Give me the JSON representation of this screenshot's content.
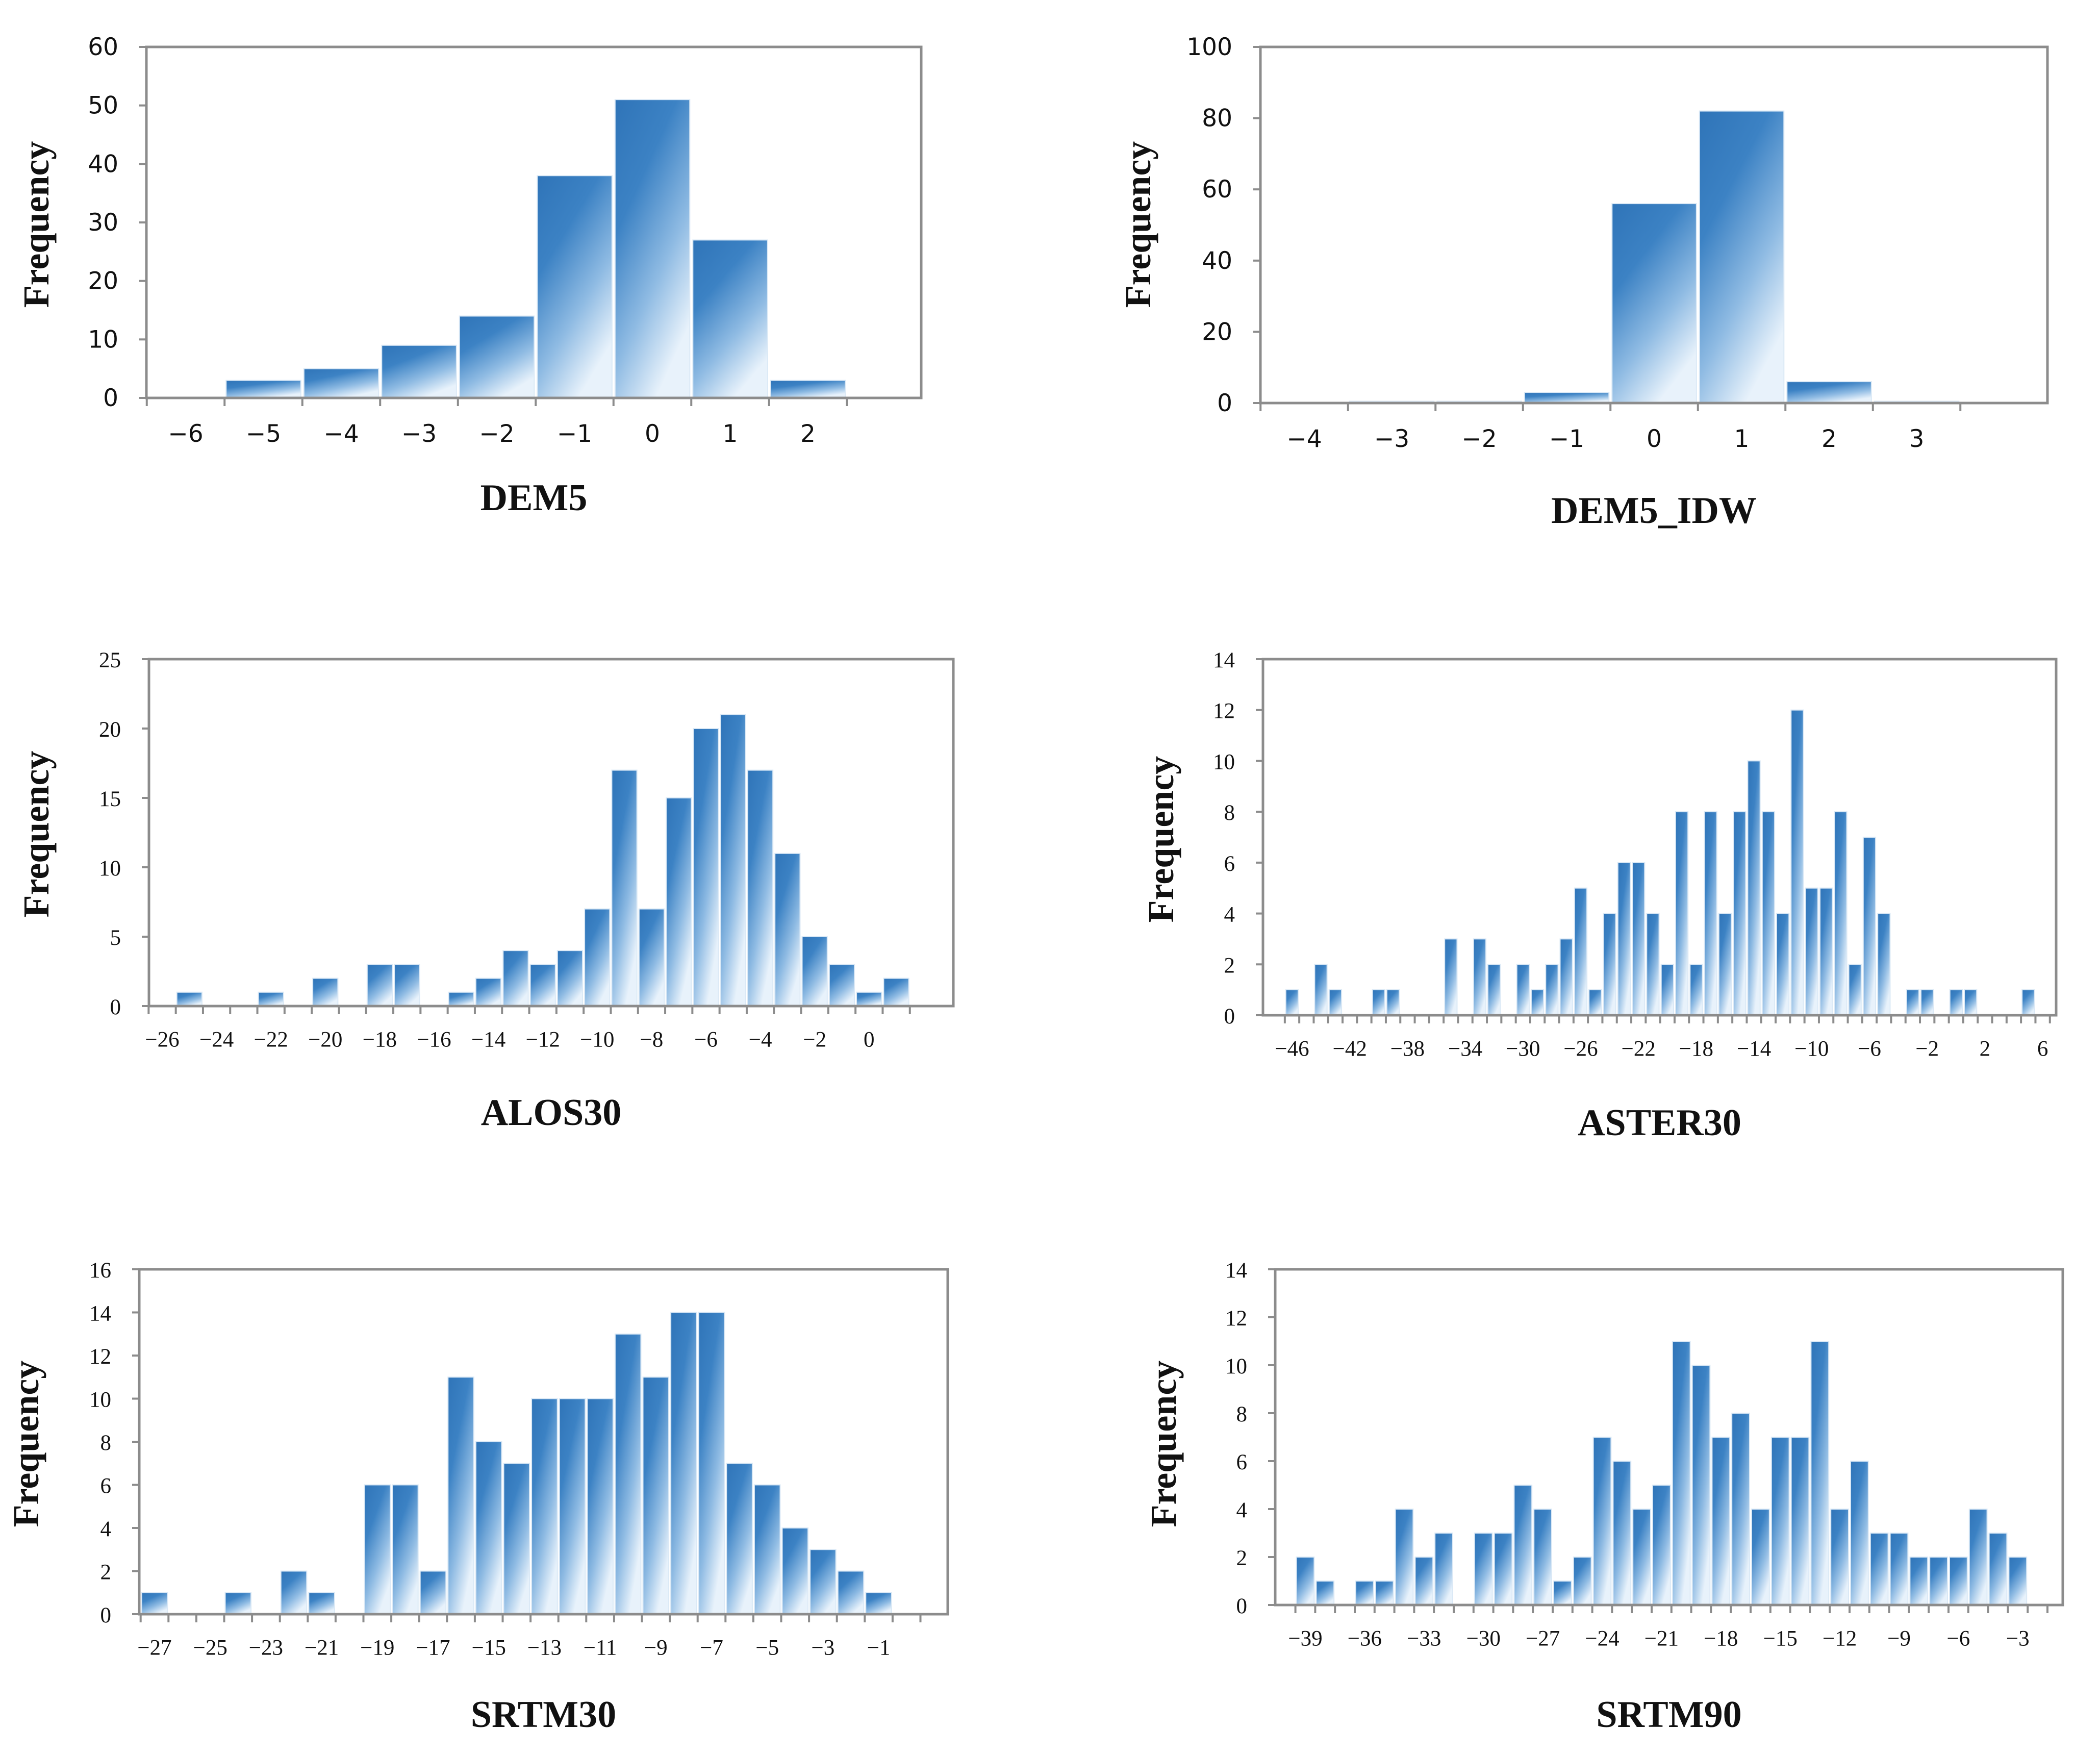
{
  "chart_data": [
    {
      "type": "bar",
      "xlabel": "DEM5",
      "ylabel": "Frequency",
      "ylim": [
        0,
        60
      ],
      "yticks": [
        "0",
        "10",
        "20",
        "30",
        "40",
        "50",
        "60"
      ],
      "xticks": [
        "−6",
        "−5",
        "−4",
        "−3",
        "−2",
        "−1",
        "0",
        "1",
        "2"
      ],
      "x": [
        -6,
        -5,
        -4,
        -3,
        -2,
        -1,
        0,
        1,
        2
      ],
      "values": [
        0,
        3,
        5,
        9,
        14,
        38,
        51,
        27,
        3
      ],
      "grid": false,
      "bar_color": "#2f74b8"
    },
    {
      "type": "bar",
      "xlabel": "DEM5_IDW",
      "ylabel": "Frequency",
      "ylim": [
        0,
        100
      ],
      "yticks": [
        "0",
        "20",
        "40",
        "60",
        "80",
        "100"
      ],
      "xticks": [
        "−4",
        "−3",
        "−2",
        "−1",
        "0",
        "1",
        "2",
        "3"
      ],
      "x": [
        -4,
        -3,
        -2,
        -1,
        0,
        1,
        2,
        3
      ],
      "values": [
        0,
        0.5,
        0.5,
        3,
        56,
        82,
        6,
        0.5
      ],
      "grid": false,
      "bar_color": "#2f74b8"
    },
    {
      "type": "bar",
      "xlabel": "ALOS30",
      "ylabel": "Frequency",
      "ylim": [
        0,
        25
      ],
      "yticks": [
        "0",
        "5",
        "10",
        "15",
        "20",
        "25"
      ],
      "xticks": [
        "−26",
        "−24",
        "−22",
        "−20",
        "−18",
        "−16",
        "−14",
        "−12",
        "−10",
        "−8",
        "−6",
        "−4",
        "−2",
        "0"
      ],
      "x": [
        -26,
        -25,
        -24,
        -23,
        -22,
        -21,
        -20,
        -19,
        -18,
        -17,
        -16,
        -15,
        -14,
        -13,
        -12,
        -11,
        -10,
        -9,
        -8,
        -7,
        -6,
        -5,
        -4,
        -3,
        -2,
        -1,
        0,
        1
      ],
      "values": [
        0,
        1,
        0,
        0,
        1,
        0,
        2,
        0,
        3,
        3,
        0,
        1,
        2,
        4,
        3,
        4,
        7,
        17,
        7,
        15,
        20,
        21,
        17,
        11,
        5,
        3,
        1,
        2
      ],
      "grid": false,
      "bar_color": "#2f74b8"
    },
    {
      "type": "bar",
      "xlabel": "ASTER30",
      "ylabel": "Frequency",
      "ylim": [
        0,
        14
      ],
      "yticks": [
        "0",
        "2",
        "4",
        "6",
        "8",
        "10",
        "12",
        "14"
      ],
      "xticks": [
        "−46",
        "−42",
        "−38",
        "−34",
        "−30",
        "−26",
        "−22",
        "−18",
        "−14",
        "−10",
        "−6",
        "−2",
        "2",
        "6"
      ],
      "x": [
        -46,
        -45,
        -44,
        -43,
        -42,
        -41,
        -40,
        -39,
        -38,
        -37,
        -36,
        -35,
        -34,
        -33,
        -32,
        -31,
        -30,
        -29,
        -28,
        -27,
        -26,
        -25,
        -24,
        -23,
        -22,
        -21,
        -20,
        -19,
        -18,
        -17,
        -16,
        -15,
        -14,
        -13,
        -12,
        -11,
        -10,
        -9,
        -8,
        -7,
        -6,
        -5,
        -4,
        -3,
        -2,
        -1,
        0,
        1,
        2,
        3,
        4,
        5,
        6
      ],
      "values": [
        1,
        0,
        2,
        1,
        0,
        0,
        1,
        1,
        0,
        0,
        0,
        3,
        0,
        3,
        2,
        0,
        2,
        1,
        2,
        3,
        5,
        1,
        4,
        6,
        6,
        4,
        2,
        8,
        2,
        8,
        4,
        8,
        10,
        8,
        4,
        12,
        5,
        5,
        8,
        2,
        7,
        4,
        0,
        1,
        1,
        0,
        1,
        1,
        0,
        0,
        0,
        1,
        0
      ],
      "grid": false,
      "bar_color": "#2f74b8"
    },
    {
      "type": "bar",
      "xlabel": "SRTM30",
      "ylabel": "Frequency",
      "ylim": [
        0,
        16
      ],
      "yticks": [
        "0",
        "2",
        "4",
        "6",
        "8",
        "10",
        "12",
        "14",
        "16"
      ],
      "xticks": [
        "−27",
        "−25",
        "−23",
        "−21",
        "−19",
        "−17",
        "−15",
        "−13",
        "−11",
        "−9",
        "−7",
        "−5",
        "−3",
        "−1"
      ],
      "x": [
        -27,
        -26,
        -25,
        -24,
        -23,
        -22,
        -21,
        -20,
        -19,
        -18,
        -17,
        -16,
        -15,
        -14,
        -13,
        -12,
        -11,
        -10,
        -9,
        -8,
        -7,
        -6,
        -5,
        -4,
        -3,
        -2,
        -1,
        0
      ],
      "values": [
        1,
        0,
        0,
        1,
        0,
        2,
        1,
        0,
        6,
        6,
        2,
        11,
        8,
        7,
        10,
        10,
        10,
        13,
        11,
        14,
        14,
        7,
        6,
        4,
        3,
        2,
        1,
        0
      ],
      "grid": false,
      "bar_color": "#2f74b8"
    },
    {
      "type": "bar",
      "xlabel": "SRTM90",
      "ylabel": "Frequency",
      "ylim": [
        0,
        14
      ],
      "yticks": [
        "0",
        "2",
        "4",
        "6",
        "8",
        "10",
        "12",
        "14"
      ],
      "xticks": [
        "−39",
        "−36",
        "−33",
        "−30",
        "−27",
        "−24",
        "−21",
        "−18",
        "−15",
        "−12",
        "−9",
        "−6",
        "−3"
      ],
      "x": [
        -39,
        -38,
        -37,
        -36,
        -35,
        -34,
        -33,
        -32,
        -31,
        -30,
        -29,
        -28,
        -27,
        -26,
        -25,
        -24,
        -23,
        -22,
        -21,
        -20,
        -19,
        -18,
        -17,
        -16,
        -15,
        -14,
        -13,
        -12,
        -11,
        -10,
        -9,
        -8,
        -7,
        -6,
        -5,
        -4,
        -3,
        -2
      ],
      "values": [
        2,
        1,
        0,
        1,
        1,
        4,
        2,
        3,
        0,
        3,
        3,
        5,
        4,
        1,
        2,
        7,
        6,
        4,
        5,
        11,
        10,
        7,
        8,
        4,
        7,
        7,
        11,
        4,
        6,
        3,
        3,
        2,
        2,
        2,
        4,
        3,
        2,
        0
      ],
      "grid": false,
      "bar_color": "#2f74b8"
    }
  ]
}
